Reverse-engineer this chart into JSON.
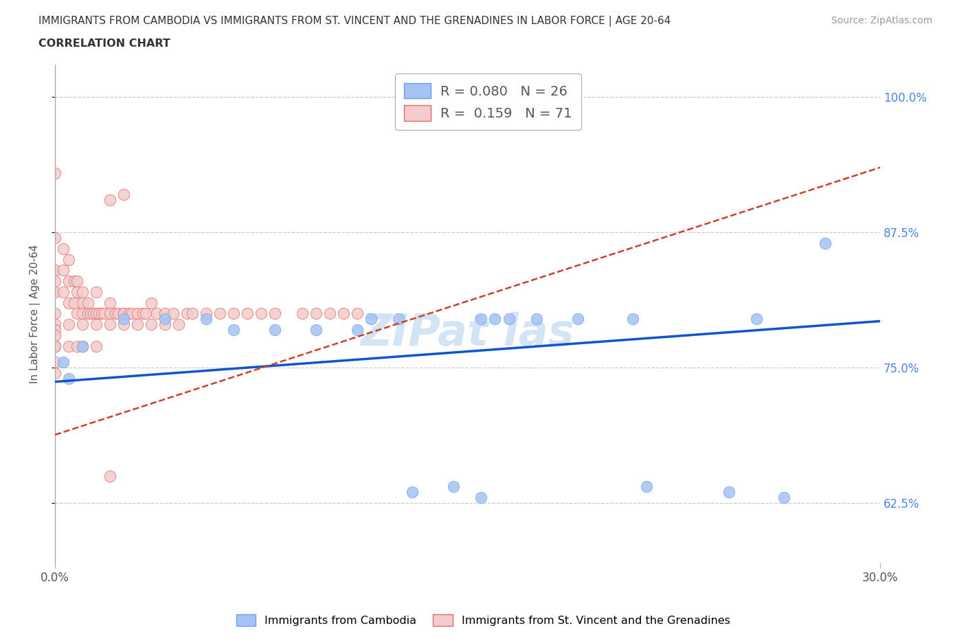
{
  "title_line1": "IMMIGRANTS FROM CAMBODIA VS IMMIGRANTS FROM ST. VINCENT AND THE GRENADINES IN LABOR FORCE | AGE 20-64",
  "title_line2": "CORRELATION CHART",
  "source": "Source: ZipAtlas.com",
  "ylabel": "In Labor Force | Age 20-64",
  "xlim": [
    0.0,
    0.3
  ],
  "ylim": [
    0.57,
    1.03
  ],
  "yticks": [
    0.625,
    0.75,
    0.875,
    1.0
  ],
  "ytick_labels": [
    "62.5%",
    "75.0%",
    "87.5%",
    "100.0%"
  ],
  "xticks": [
    0.0,
    0.3
  ],
  "xtick_labels": [
    "0.0%",
    "30.0%"
  ],
  "R_cambodia": 0.08,
  "N_cambodia": 26,
  "R_stv": 0.159,
  "N_stv": 71,
  "color_cambodia": "#a4c2f4",
  "color_stv": "#f4cccc",
  "edge_cambodia": "#6d9eeb",
  "edge_stv": "#e06666",
  "line_color_cambodia": "#1155cc",
  "line_color_stv": "#cc4125",
  "grid_color": "#cccccc",
  "right_label_color": "#4a86e8",
  "watermark_color": "#cfe2f3",
  "cam_x": [
    0.003,
    0.01,
    0.025,
    0.04,
    0.055,
    0.065,
    0.08,
    0.095,
    0.11,
    0.115,
    0.125,
    0.13,
    0.145,
    0.155,
    0.16,
    0.165,
    0.175,
    0.19,
    0.21,
    0.215,
    0.245,
    0.255,
    0.265,
    0.28,
    0.155,
    0.005
  ],
  "cam_y": [
    0.755,
    0.77,
    0.795,
    0.795,
    0.795,
    0.785,
    0.785,
    0.785,
    0.785,
    0.795,
    0.795,
    0.635,
    0.64,
    0.795,
    0.795,
    0.795,
    0.795,
    0.795,
    0.795,
    0.64,
    0.635,
    0.795,
    0.63,
    0.865,
    0.63,
    0.74
  ],
  "stv_x": [
    0.0,
    0.0,
    0.0,
    0.0,
    0.0,
    0.0,
    0.0,
    0.0,
    0.0,
    0.0,
    0.003,
    0.003,
    0.003,
    0.005,
    0.005,
    0.005,
    0.005,
    0.007,
    0.007,
    0.008,
    0.008,
    0.008,
    0.01,
    0.01,
    0.01,
    0.01,
    0.012,
    0.012,
    0.013,
    0.014,
    0.015,
    0.015,
    0.015,
    0.016,
    0.017,
    0.018,
    0.02,
    0.02,
    0.02,
    0.022,
    0.023,
    0.025,
    0.025,
    0.025,
    0.027,
    0.028,
    0.03,
    0.03,
    0.032,
    0.033,
    0.035,
    0.035,
    0.037,
    0.04,
    0.04,
    0.043,
    0.045,
    0.048,
    0.05,
    0.055,
    0.06,
    0.065,
    0.07,
    0.075,
    0.08,
    0.09,
    0.095,
    0.1,
    0.105,
    0.11,
    0.02
  ],
  "stv_y": [
    0.93,
    0.87,
    0.84,
    0.83,
    0.82,
    0.8,
    0.79,
    0.785,
    0.78,
    0.77,
    0.86,
    0.84,
    0.82,
    0.85,
    0.83,
    0.81,
    0.79,
    0.83,
    0.81,
    0.83,
    0.82,
    0.8,
    0.82,
    0.81,
    0.8,
    0.79,
    0.81,
    0.8,
    0.8,
    0.8,
    0.82,
    0.8,
    0.79,
    0.8,
    0.8,
    0.8,
    0.81,
    0.8,
    0.79,
    0.8,
    0.8,
    0.8,
    0.8,
    0.79,
    0.8,
    0.8,
    0.8,
    0.79,
    0.8,
    0.8,
    0.81,
    0.79,
    0.8,
    0.8,
    0.79,
    0.8,
    0.79,
    0.8,
    0.8,
    0.8,
    0.8,
    0.8,
    0.8,
    0.8,
    0.8,
    0.8,
    0.8,
    0.8,
    0.8,
    0.8,
    0.65
  ],
  "stv_outlier_high_x": [
    0.02,
    0.025,
    0.0,
    0.005,
    0.008,
    0.01,
    0.015,
    0.0,
    0.0
  ],
  "stv_outlier_high_y": [
    0.905,
    0.91,
    0.77,
    0.77,
    0.77,
    0.77,
    0.77,
    0.755,
    0.745
  ],
  "cam_trendline_x0": 0.0,
  "cam_trendline_y0": 0.737,
  "cam_trendline_x1": 0.3,
  "cam_trendline_y1": 0.793,
  "stv_trendline_x0": 0.0,
  "stv_trendline_y0": 0.688,
  "stv_trendline_x1": 0.3,
  "stv_trendline_y1": 0.935
}
